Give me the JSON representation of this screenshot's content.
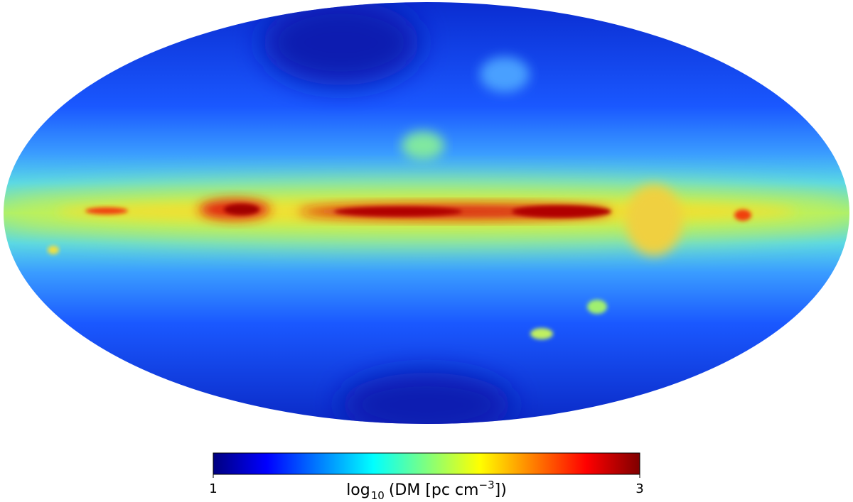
{
  "colorbar": {
    "lim": [
      1,
      3
    ],
    "ticks": [
      1,
      3
    ],
    "colormap": "jet",
    "label_parts": [
      "log",
      "10",
      "(DM [pc cm",
      "−3",
      "])"
    ]
  }
}
